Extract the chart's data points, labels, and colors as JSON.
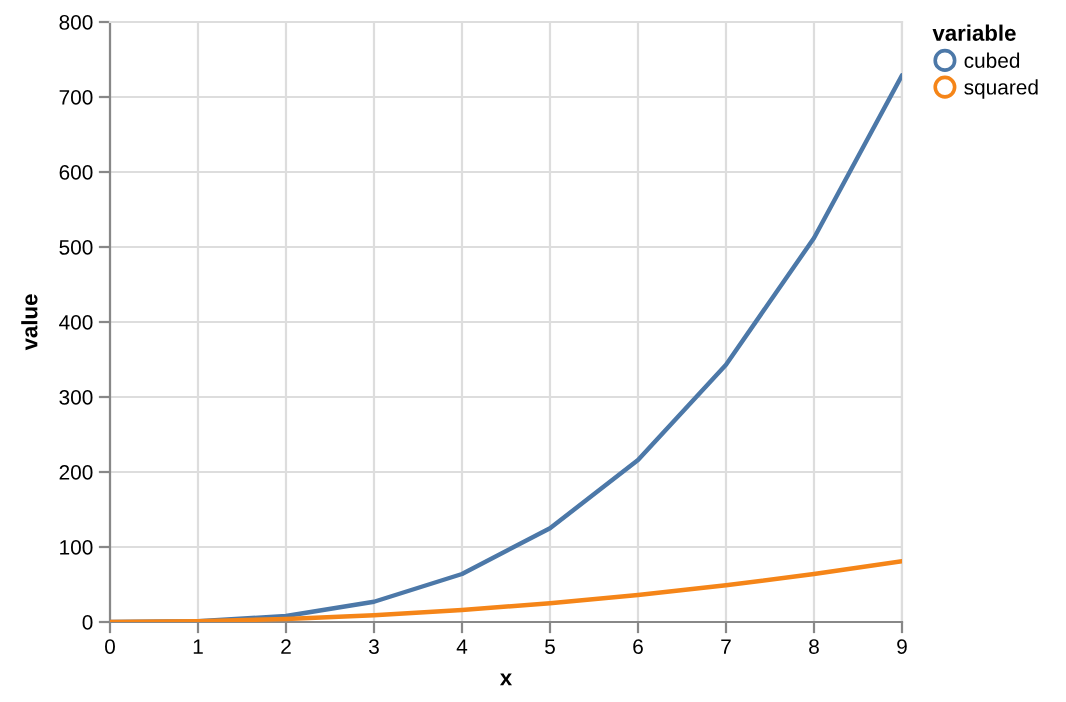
{
  "chart_data": {
    "type": "line",
    "xlabel": "x",
    "ylabel": "value",
    "legend_title": "variable",
    "x": [
      0,
      1,
      2,
      3,
      4,
      5,
      6,
      7,
      8,
      9
    ],
    "series": [
      {
        "name": "cubed",
        "color": "#4c78a8",
        "values": [
          0,
          1,
          8,
          27,
          64,
          125,
          216,
          343,
          512,
          729
        ]
      },
      {
        "name": "squared",
        "color": "#f58518",
        "values": [
          0,
          1,
          4,
          9,
          16,
          25,
          36,
          49,
          64,
          81
        ]
      }
    ],
    "xlim": [
      0,
      9
    ],
    "xticks": [
      0,
      1,
      2,
      3,
      4,
      5,
      6,
      7,
      8,
      9
    ],
    "ylim": [
      0,
      800
    ],
    "yticks": [
      0,
      100,
      200,
      300,
      400,
      500,
      600,
      700,
      800
    ],
    "grid": true,
    "legend": "top right"
  }
}
